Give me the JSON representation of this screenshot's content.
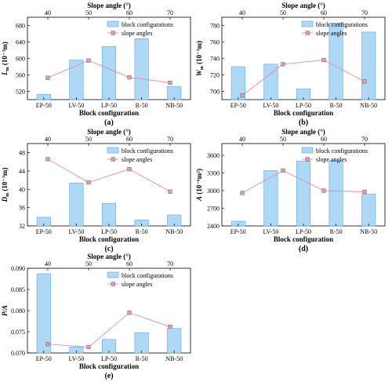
{
  "chart_data": [
    {
      "type": "bar",
      "panel_label": "(a)",
      "categories": [
        "EP-50",
        "LV-50",
        "LP-50",
        "R-50",
        "NB-50"
      ],
      "xlabel": "Block configuration",
      "top_xlabel": "Slope angle (°)",
      "top_ticks": [
        "40",
        "50",
        "60",
        "70"
      ],
      "top_x": [
        40,
        50,
        60,
        70
      ],
      "ylabel_main": "L",
      "ylabel_sub": "m",
      "ylabel_unit": "(10⁻³m)",
      "ylim": [
        500,
        700
      ],
      "yticks": [
        520,
        560,
        600,
        640,
        680
      ],
      "series": [
        {
          "name": "block configurations",
          "kind": "bar",
          "values": [
            513,
            596,
            629,
            648,
            532
          ]
        },
        {
          "name": "slope angles",
          "kind": "line",
          "x": [
            40,
            50,
            60,
            70
          ],
          "values": [
            553,
            595,
            554,
            541
          ]
        }
      ]
    },
    {
      "type": "bar",
      "panel_label": "(b)",
      "categories": [
        "EP-50",
        "LV-50",
        "LP-50",
        "R-50",
        "NB-50"
      ],
      "xlabel": "Block configuration",
      "top_xlabel": "Slope angle (°)",
      "top_ticks": [
        "40",
        "50",
        "60",
        "70"
      ],
      "top_x": [
        40,
        50,
        60,
        70
      ],
      "ylabel_main": "W",
      "ylabel_sub": "m",
      "ylabel_unit": "(10⁻³m)",
      "ylim": [
        690,
        790
      ],
      "yticks": [
        700,
        720,
        740,
        760,
        780
      ],
      "series": [
        {
          "name": "block configurations",
          "kind": "bar",
          "values": [
            730,
            733,
            703,
            783,
            772
          ]
        },
        {
          "name": "slope angles",
          "kind": "line",
          "x": [
            40,
            50,
            60,
            70
          ],
          "values": [
            695,
            733,
            738,
            712
          ]
        }
      ]
    },
    {
      "type": "bar",
      "panel_label": "(c)",
      "categories": [
        "EP-50",
        "LV-50",
        "LP-50",
        "R-50",
        "NB-50"
      ],
      "xlabel": "Block configuration",
      "top_xlabel": "Slope angle (°)",
      "top_ticks": [
        "40",
        "50",
        "60",
        "70"
      ],
      "top_x": [
        40,
        50,
        60,
        70
      ],
      "ylabel_main": "D",
      "ylabel_sub": "m",
      "ylabel_unit": "(10⁻³m)",
      "ylim": [
        32,
        50
      ],
      "yticks": [
        32,
        36,
        40,
        44,
        48
      ],
      "series": [
        {
          "name": "block configurations",
          "kind": "bar",
          "values": [
            33.9,
            41.4,
            36.9,
            33.3,
            34.4
          ]
        },
        {
          "name": "slope angles",
          "kind": "line",
          "x": [
            40,
            50,
            60,
            70
          ],
          "values": [
            46.6,
            41.5,
            44.4,
            39.5
          ]
        }
      ]
    },
    {
      "type": "bar",
      "panel_label": "(d)",
      "categories": [
        "EP-50",
        "LV-50",
        "LP-50",
        "R-50",
        "NB-50"
      ],
      "xlabel": "Block configuration",
      "top_xlabel": "Slope angle (°)",
      "top_ticks": [
        "40",
        "50",
        "60",
        "70"
      ],
      "top_x": [
        40,
        50,
        60,
        70
      ],
      "ylabel_main": "A",
      "ylabel_sub": "",
      "ylabel_unit": "(10⁻⁶m²)",
      "ylim": [
        2400,
        3800
      ],
      "yticks": [
        2400,
        2700,
        3000,
        3300,
        3600
      ],
      "series": [
        {
          "name": "block configurations",
          "kind": "bar",
          "values": [
            2480,
            3340,
            3500,
            3510,
            2940
          ]
        },
        {
          "name": "slope angles",
          "kind": "line",
          "x": [
            40,
            50,
            60,
            70
          ],
          "values": [
            2960,
            3340,
            3000,
            2980
          ]
        }
      ]
    },
    {
      "type": "bar",
      "panel_label": "(e)",
      "categories": [
        "EP-50",
        "LV-50",
        "LP-50",
        "R-50",
        "NB-50"
      ],
      "xlabel": "Block configuration",
      "top_xlabel": "Slope angle (°)",
      "top_ticks": [
        "40",
        "50",
        "60",
        "70"
      ],
      "top_x": [
        40,
        50,
        60,
        70
      ],
      "ylabel_main": "P/A",
      "ylabel_sub": "",
      "ylabel_unit": "",
      "ylim": [
        0.07,
        0.09
      ],
      "yticks": [
        0.07,
        0.075,
        0.08,
        0.085,
        0.09
      ],
      "ytick_labels": [
        "0.070",
        "0.075",
        "0.080",
        "0.085",
        "0.090"
      ],
      "series": [
        {
          "name": "block configurations",
          "kind": "bar",
          "values": [
            0.0887,
            0.0714,
            0.0732,
            0.0748,
            0.0758
          ]
        },
        {
          "name": "slope angles",
          "kind": "line",
          "x": [
            40,
            50,
            60,
            70
          ],
          "values": [
            0.0721,
            0.0714,
            0.0795,
            0.0762
          ]
        }
      ]
    }
  ],
  "colors": {
    "bar_fill": "#aed8f5",
    "bar_stroke": "#5aa8e0",
    "line": "#e48aa6",
    "marker_fill": "#c9a8b0",
    "marker_stroke": "#9c5a70"
  }
}
